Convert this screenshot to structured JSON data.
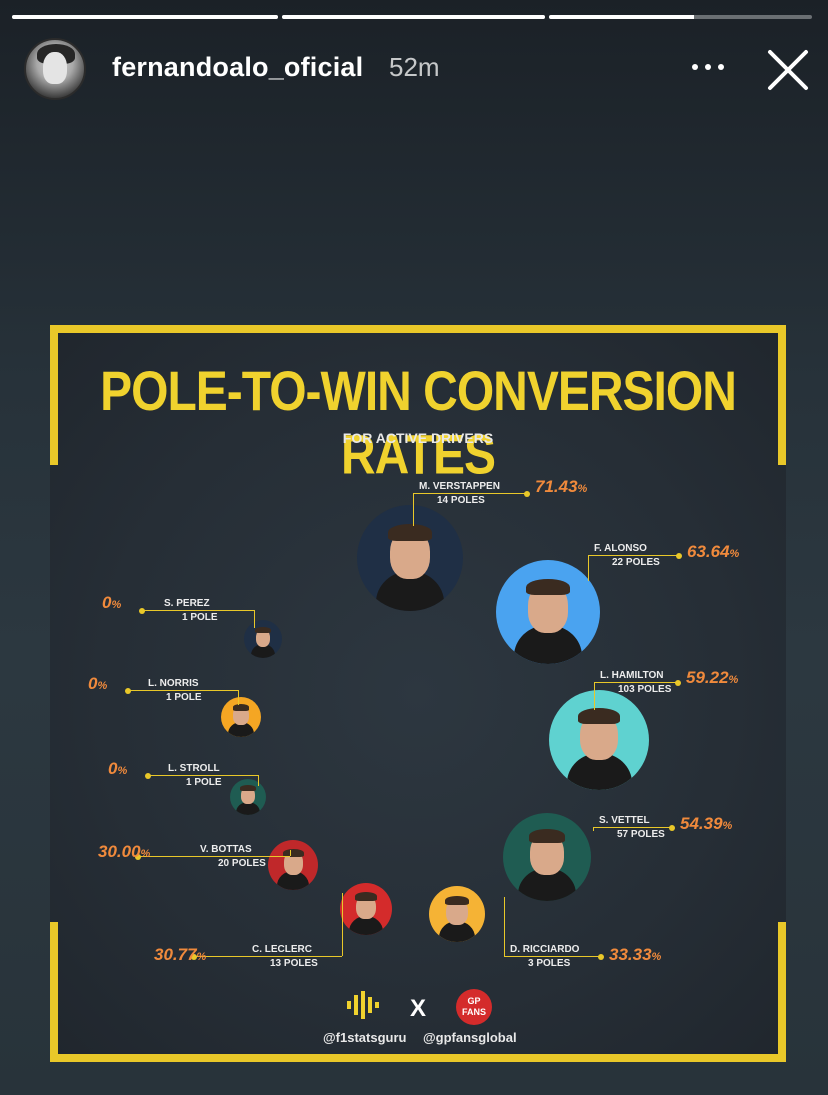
{
  "story": {
    "username": "fernandoalo_oficial",
    "time": "52m",
    "progress": [
      1,
      1,
      0.55
    ]
  },
  "infographic": {
    "title": "POLE-TO-WIN CONVERSION RATES",
    "subtitle": "FOR ACTIVE DRIVERS",
    "credits": {
      "left": "@f1statsguru",
      "x": "X",
      "right": "@gpfansglobal",
      "badge_top": "GP",
      "badge_bottom": "FANS"
    }
  },
  "chart_data": {
    "type": "bubble",
    "title": "POLE-TO-WIN CONVERSION RATES",
    "subtitle": "FOR ACTIVE DRIVERS",
    "drivers": [
      {
        "name": "M. VERSTAPPEN",
        "poles": "14 POLES",
        "pole_count": 14,
        "rate": "71.43",
        "unit": "%",
        "color": "#1f2f45"
      },
      {
        "name": "F. ALONSO",
        "poles": "22 POLES",
        "pole_count": 22,
        "rate": "63.64",
        "unit": "%",
        "color": "#4aa3f0"
      },
      {
        "name": "L. HAMILTON",
        "poles": "103 POLES",
        "pole_count": 103,
        "rate": "59.22",
        "unit": "%",
        "color": "#5fd2d0"
      },
      {
        "name": "S. VETTEL",
        "poles": "57 POLES",
        "pole_count": 57,
        "rate": "54.39",
        "unit": "%",
        "color": "#1f5c52"
      },
      {
        "name": "D. RICCIARDO",
        "poles": "3 POLES",
        "pole_count": 3,
        "rate": "33.33",
        "unit": "%",
        "color": "#f5b335"
      },
      {
        "name": "C. LECLERC",
        "poles": "13 POLES",
        "pole_count": 13,
        "rate": "30.77",
        "unit": "%",
        "color": "#d42b2b"
      },
      {
        "name": "V. BOTTAS",
        "poles": "20 POLES",
        "pole_count": 20,
        "rate": "30.00",
        "unit": "%",
        "color": "#c0282a"
      },
      {
        "name": "L. STROLL",
        "poles": "1 POLE",
        "pole_count": 1,
        "rate": "0",
        "unit": "%",
        "color": "#1f5c52"
      },
      {
        "name": "L. NORRIS",
        "poles": "1 POLE",
        "pole_count": 1,
        "rate": "0",
        "unit": "%",
        "color": "#f5a623"
      },
      {
        "name": "S. PEREZ",
        "poles": "1 POLE",
        "pole_count": 1,
        "rate": "0",
        "unit": "%",
        "color": "#1f2f45"
      }
    ]
  }
}
